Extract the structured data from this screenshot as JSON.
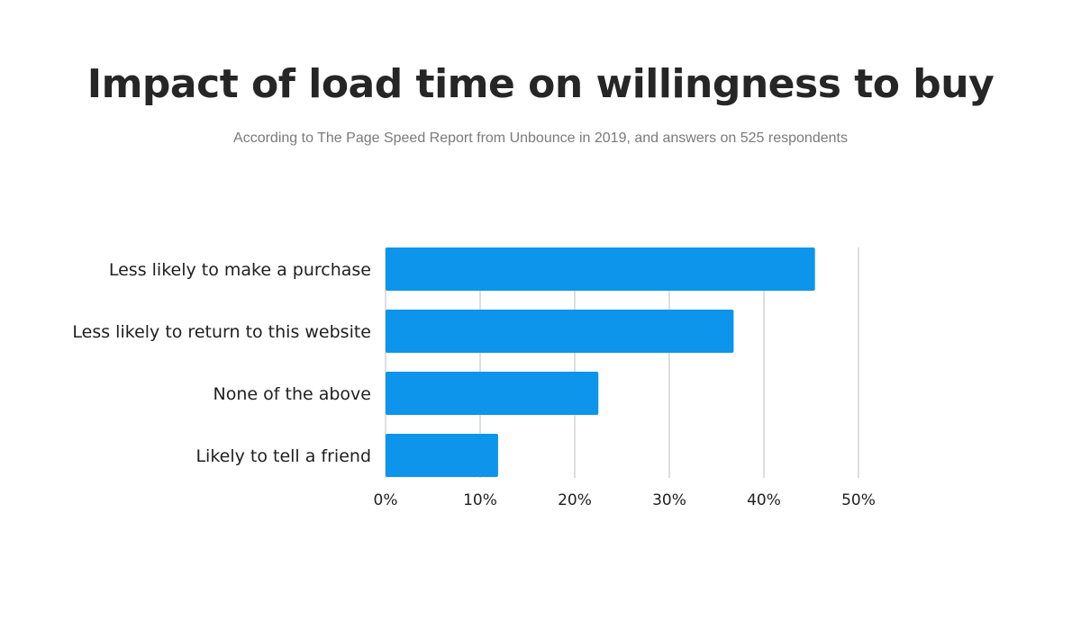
{
  "chart_data": {
    "type": "bar",
    "orientation": "horizontal",
    "title": "Impact of load time on willingness to buy",
    "subtitle": "According to The Page Speed Report from Unbounce in 2019, and answers on 525 respondents",
    "categories": [
      "Less likely to make a purchase",
      "Less likely to return to this website",
      "None of the above",
      "Likely to tell a friend"
    ],
    "values": [
      45.4,
      36.8,
      22.5,
      11.9
    ],
    "xlim": [
      0,
      50
    ],
    "xticks": [
      0,
      10,
      20,
      30,
      40,
      50
    ],
    "xtick_labels": [
      "0%",
      "10%",
      "20%",
      "30%",
      "40%",
      "50%"
    ],
    "xlabel": "",
    "ylabel": "",
    "grid": true,
    "bar_color": "#0c95eb",
    "grid_color": "#d3d3d3"
  }
}
